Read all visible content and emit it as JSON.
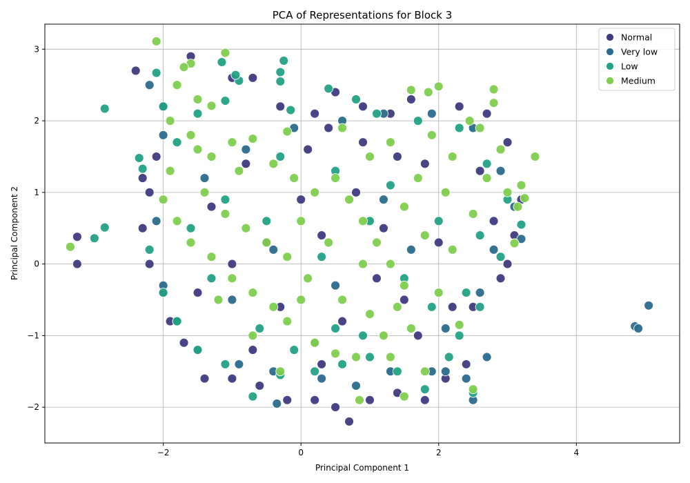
{
  "chart_data": {
    "type": "scatter",
    "title": "PCA of Representations for Block 3",
    "xlabel": "Principal Component 1",
    "ylabel": "Principal Component 2",
    "xlim": [
      -3.72,
      5.5
    ],
    "ylim": [
      -2.5,
      3.35
    ],
    "x_ticks": [
      -2,
      0,
      2,
      4
    ],
    "y_ticks": [
      -2,
      -1,
      0,
      1,
      2,
      3
    ],
    "grid": true,
    "legend_position": "top-right",
    "series": [
      {
        "name": "Normal",
        "color": "#3e3a7e",
        "points": [
          [
            -2.0,
            2.2
          ],
          [
            -1.6,
            2.9
          ],
          [
            -1.0,
            2.6
          ],
          [
            -0.7,
            2.6
          ],
          [
            -0.3,
            2.2
          ],
          [
            0.2,
            2.1
          ],
          [
            0.5,
            2.4
          ],
          [
            0.9,
            2.2
          ],
          [
            1.3,
            2.1
          ],
          [
            1.6,
            2.3
          ],
          [
            2.3,
            2.2
          ],
          [
            2.7,
            2.1
          ],
          [
            3.0,
            1.7
          ],
          [
            3.2,
            0.9
          ],
          [
            3.1,
            0.4
          ],
          [
            3.0,
            0.0
          ],
          [
            2.9,
            -0.2
          ],
          [
            2.5,
            -0.6
          ],
          [
            2.2,
            -0.6
          ],
          [
            2.4,
            -1.4
          ],
          [
            2.1,
            -1.6
          ],
          [
            1.8,
            -1.9
          ],
          [
            1.4,
            -1.8
          ],
          [
            1.0,
            -1.9
          ],
          [
            0.7,
            -2.2
          ],
          [
            0.5,
            -2.0
          ],
          [
            0.2,
            -1.9
          ],
          [
            -0.2,
            -1.9
          ],
          [
            -0.6,
            -1.7
          ],
          [
            -1.0,
            -1.6
          ],
          [
            -1.4,
            -1.6
          ],
          [
            -1.7,
            -1.1
          ],
          [
            -1.9,
            -0.8
          ],
          [
            -2.0,
            -0.4
          ],
          [
            -2.2,
            0.0
          ],
          [
            -2.3,
            0.5
          ],
          [
            -2.2,
            1.0
          ],
          [
            -2.1,
            1.5
          ],
          [
            -2.3,
            1.2
          ],
          [
            -2.4,
            2.7
          ],
          [
            -3.25,
            0.38
          ],
          [
            -3.25,
            0.0
          ],
          [
            -0.5,
            0.3
          ],
          [
            0.3,
            0.4
          ],
          [
            0.8,
            1.0
          ],
          [
            1.2,
            0.5
          ],
          [
            1.5,
            -0.5
          ],
          [
            0.6,
            -0.8
          ],
          [
            -0.3,
            -0.6
          ],
          [
            -1.0,
            0.0
          ],
          [
            -1.3,
            0.8
          ],
          [
            -0.8,
            1.4
          ],
          [
            0.1,
            1.6
          ],
          [
            0.9,
            1.7
          ],
          [
            1.8,
            1.4
          ],
          [
            2.0,
            0.3
          ],
          [
            1.7,
            -1.0
          ],
          [
            0.3,
            -1.4
          ],
          [
            -0.7,
            -1.2
          ],
          [
            -1.5,
            -0.4
          ],
          [
            1.1,
            -0.2
          ],
          [
            0.0,
            0.9
          ],
          [
            2.6,
            1.3
          ],
          [
            2.8,
            0.6
          ],
          [
            0.4,
            1.9
          ],
          [
            1.4,
            1.5
          ]
        ]
      },
      {
        "name": "Very low",
        "color": "#2b6b8c",
        "points": [
          [
            -2.2,
            2.5
          ],
          [
            -2.0,
            1.8
          ],
          [
            -2.1,
            0.6
          ],
          [
            -2.0,
            -0.3
          ],
          [
            -1.8,
            -0.8
          ],
          [
            -1.5,
            -1.2
          ],
          [
            -0.9,
            -1.4
          ],
          [
            -0.4,
            -1.5
          ],
          [
            -0.35,
            -1.95
          ],
          [
            0.3,
            -1.6
          ],
          [
            0.8,
            -1.7
          ],
          [
            1.3,
            -1.5
          ],
          [
            1.9,
            -1.5
          ],
          [
            2.1,
            -1.5
          ],
          [
            2.4,
            -1.6
          ],
          [
            2.5,
            -1.9
          ],
          [
            2.7,
            -1.3
          ],
          [
            2.1,
            -0.9
          ],
          [
            2.6,
            -0.4
          ],
          [
            2.8,
            0.2
          ],
          [
            3.2,
            0.35
          ],
          [
            3.1,
            0.8
          ],
          [
            2.9,
            1.3
          ],
          [
            2.5,
            1.9
          ],
          [
            1.9,
            2.1
          ],
          [
            1.2,
            2.1
          ],
          [
            0.6,
            2.0
          ],
          [
            -0.1,
            1.9
          ],
          [
            -0.8,
            1.6
          ],
          [
            -1.4,
            1.2
          ],
          [
            -0.4,
            0.2
          ],
          [
            0.5,
            -0.3
          ],
          [
            1.2,
            0.9
          ],
          [
            1.6,
            0.2
          ],
          [
            -1.0,
            -0.5
          ],
          [
            0.2,
            -1.1
          ],
          [
            4.85,
            -0.87
          ],
          [
            4.9,
            -0.9
          ],
          [
            5.05,
            -0.58
          ]
        ]
      },
      {
        "name": "Low",
        "color": "#22a185",
        "points": [
          [
            -2.35,
            1.48
          ],
          [
            -2.3,
            1.33
          ],
          [
            -2.1,
            2.67
          ],
          [
            -2.0,
            2.2
          ],
          [
            -2.2,
            0.2
          ],
          [
            -2.0,
            -0.4
          ],
          [
            -1.8,
            -0.8
          ],
          [
            -1.5,
            -1.2
          ],
          [
            -1.1,
            -1.4
          ],
          [
            -0.7,
            -1.85
          ],
          [
            -0.3,
            -1.55
          ],
          [
            0.2,
            -1.5
          ],
          [
            0.6,
            -1.4
          ],
          [
            1.0,
            -1.3
          ],
          [
            1.4,
            -1.5
          ],
          [
            1.8,
            -1.75
          ],
          [
            2.15,
            -1.3
          ],
          [
            2.5,
            -1.8
          ],
          [
            2.3,
            -1.0
          ],
          [
            2.6,
            -0.6
          ],
          [
            2.4,
            -0.4
          ],
          [
            2.9,
            0.1
          ],
          [
            3.2,
            0.55
          ],
          [
            3.0,
            0.9
          ],
          [
            2.7,
            1.4
          ],
          [
            2.3,
            1.9
          ],
          [
            1.7,
            2.0
          ],
          [
            1.1,
            2.1
          ],
          [
            0.8,
            2.3
          ],
          [
            0.4,
            2.45
          ],
          [
            -0.15,
            2.15
          ],
          [
            -0.3,
            2.55
          ],
          [
            -0.25,
            2.84
          ],
          [
            -0.3,
            2.68
          ],
          [
            -0.9,
            2.56
          ],
          [
            -1.15,
            2.82
          ],
          [
            -0.95,
            2.64
          ],
          [
            -1.1,
            2.28
          ],
          [
            -1.5,
            2.1
          ],
          [
            -1.8,
            1.7
          ],
          [
            -2.85,
            2.17
          ],
          [
            -2.85,
            0.51
          ],
          [
            -3.0,
            0.36
          ],
          [
            -0.5,
            0.6
          ],
          [
            0.3,
            0.1
          ],
          [
            1.0,
            0.6
          ],
          [
            1.5,
            -0.2
          ],
          [
            0.5,
            -0.9
          ],
          [
            -0.6,
            -0.9
          ],
          [
            -1.3,
            -0.2
          ],
          [
            -1.1,
            0.9
          ],
          [
            -0.3,
            1.5
          ],
          [
            0.5,
            1.3
          ],
          [
            1.3,
            1.1
          ],
          [
            2.0,
            0.6
          ],
          [
            1.9,
            -0.6
          ],
          [
            0.9,
            -1.0
          ],
          [
            -0.1,
            -1.2
          ],
          [
            -1.6,
            0.5
          ],
          [
            2.6,
            0.4
          ]
        ]
      },
      {
        "name": "Medium",
        "color": "#7ece4e",
        "points": [
          [
            -2.1,
            3.11
          ],
          [
            -1.6,
            2.8
          ],
          [
            -1.7,
            2.75
          ],
          [
            -1.1,
            2.95
          ],
          [
            -1.8,
            2.5
          ],
          [
            -1.5,
            2.3
          ],
          [
            -1.9,
            2.0
          ],
          [
            -1.6,
            1.8
          ],
          [
            -1.3,
            1.5
          ],
          [
            -1.0,
            1.7
          ],
          [
            -0.7,
            1.75
          ],
          [
            -0.4,
            1.4
          ],
          [
            -0.1,
            1.2
          ],
          [
            0.2,
            1.0
          ],
          [
            0.5,
            1.2
          ],
          [
            0.7,
            0.9
          ],
          [
            0.9,
            0.6
          ],
          [
            1.1,
            0.3
          ],
          [
            1.3,
            0.0
          ],
          [
            1.5,
            -0.3
          ],
          [
            1.4,
            -0.6
          ],
          [
            1.2,
            -1.0
          ],
          [
            0.8,
            -1.3
          ],
          [
            0.5,
            -1.25
          ],
          [
            0.2,
            -1.1
          ],
          [
            -0.2,
            -0.8
          ],
          [
            -0.4,
            -0.6
          ],
          [
            -0.7,
            -0.4
          ],
          [
            -1.0,
            -0.2
          ],
          [
            -1.3,
            0.1
          ],
          [
            -1.6,
            0.3
          ],
          [
            -1.8,
            0.6
          ],
          [
            -2.0,
            0.9
          ],
          [
            -1.9,
            1.3
          ],
          [
            -1.4,
            1.0
          ],
          [
            -1.1,
            0.7
          ],
          [
            -0.8,
            0.5
          ],
          [
            -0.5,
            0.3
          ],
          [
            -0.2,
            0.1
          ],
          [
            0.1,
            -0.2
          ],
          [
            0.4,
            0.3
          ],
          [
            0.6,
            -0.5
          ],
          [
            1.0,
            -0.7
          ],
          [
            1.3,
            -1.3
          ],
          [
            1.6,
            -0.9
          ],
          [
            1.8,
            -1.5
          ],
          [
            1.5,
            -1.85
          ],
          [
            0.85,
            -1.9
          ],
          [
            2.0,
            -0.4
          ],
          [
            2.3,
            -0.85
          ],
          [
            2.5,
            -1.75
          ],
          [
            2.2,
            0.2
          ],
          [
            2.5,
            0.7
          ],
          [
            2.7,
            1.2
          ],
          [
            2.9,
            1.6
          ],
          [
            2.8,
            2.25
          ],
          [
            2.8,
            2.44
          ],
          [
            2.45,
            2.0
          ],
          [
            2.0,
            2.48
          ],
          [
            1.85,
            2.4
          ],
          [
            1.6,
            2.43
          ],
          [
            1.9,
            1.8
          ],
          [
            2.2,
            1.5
          ],
          [
            1.7,
            1.2
          ],
          [
            1.5,
            0.8
          ],
          [
            1.8,
            0.4
          ],
          [
            3.0,
            1.0
          ],
          [
            3.2,
            1.1
          ],
          [
            3.25,
            0.92
          ],
          [
            3.15,
            0.8
          ],
          [
            3.4,
            1.5
          ],
          [
            3.1,
            0.29
          ],
          [
            -1.3,
            2.21
          ],
          [
            -0.2,
            1.85
          ],
          [
            0.6,
            1.9
          ],
          [
            1.0,
            1.5
          ],
          [
            1.3,
            1.7
          ],
          [
            0.0,
            0.6
          ],
          [
            -0.9,
            1.3
          ],
          [
            -1.5,
            1.6
          ],
          [
            -3.35,
            0.24
          ],
          [
            -0.7,
            -1.0
          ],
          [
            0.0,
            -0.5
          ],
          [
            -1.2,
            -0.5
          ],
          [
            -0.3,
            -1.5
          ],
          [
            0.9,
            0.0
          ],
          [
            2.1,
            1.0
          ],
          [
            2.6,
            1.9
          ]
        ]
      }
    ]
  }
}
